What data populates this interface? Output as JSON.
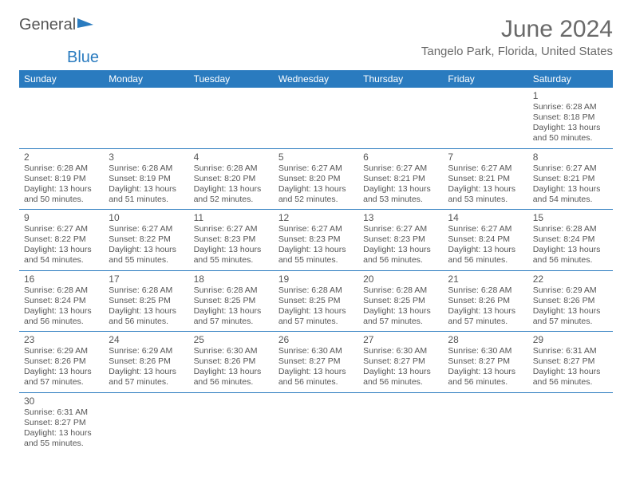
{
  "brand": {
    "part1": "General",
    "part2": "Blue",
    "logo_color": "#2a7bbf"
  },
  "title": "June 2024",
  "location": "Tangelo Park, Florida, United States",
  "colors": {
    "header_bg": "#2a7bbf",
    "header_text": "#ffffff",
    "border": "#2a7bbf",
    "blank_bg": "#f0f0f0",
    "text": "#555555"
  },
  "weekdays": [
    "Sunday",
    "Monday",
    "Tuesday",
    "Wednesday",
    "Thursday",
    "Friday",
    "Saturday"
  ],
  "first_weekday_index": 6,
  "days": [
    {
      "n": 1,
      "sunrise": "6:28 AM",
      "sunset": "8:18 PM",
      "daylight": "13 hours and 50 minutes."
    },
    {
      "n": 2,
      "sunrise": "6:28 AM",
      "sunset": "8:19 PM",
      "daylight": "13 hours and 50 minutes."
    },
    {
      "n": 3,
      "sunrise": "6:28 AM",
      "sunset": "8:19 PM",
      "daylight": "13 hours and 51 minutes."
    },
    {
      "n": 4,
      "sunrise": "6:28 AM",
      "sunset": "8:20 PM",
      "daylight": "13 hours and 52 minutes."
    },
    {
      "n": 5,
      "sunrise": "6:27 AM",
      "sunset": "8:20 PM",
      "daylight": "13 hours and 52 minutes."
    },
    {
      "n": 6,
      "sunrise": "6:27 AM",
      "sunset": "8:21 PM",
      "daylight": "13 hours and 53 minutes."
    },
    {
      "n": 7,
      "sunrise": "6:27 AM",
      "sunset": "8:21 PM",
      "daylight": "13 hours and 53 minutes."
    },
    {
      "n": 8,
      "sunrise": "6:27 AM",
      "sunset": "8:21 PM",
      "daylight": "13 hours and 54 minutes."
    },
    {
      "n": 9,
      "sunrise": "6:27 AM",
      "sunset": "8:22 PM",
      "daylight": "13 hours and 54 minutes."
    },
    {
      "n": 10,
      "sunrise": "6:27 AM",
      "sunset": "8:22 PM",
      "daylight": "13 hours and 55 minutes."
    },
    {
      "n": 11,
      "sunrise": "6:27 AM",
      "sunset": "8:23 PM",
      "daylight": "13 hours and 55 minutes."
    },
    {
      "n": 12,
      "sunrise": "6:27 AM",
      "sunset": "8:23 PM",
      "daylight": "13 hours and 55 minutes."
    },
    {
      "n": 13,
      "sunrise": "6:27 AM",
      "sunset": "8:23 PM",
      "daylight": "13 hours and 56 minutes."
    },
    {
      "n": 14,
      "sunrise": "6:27 AM",
      "sunset": "8:24 PM",
      "daylight": "13 hours and 56 minutes."
    },
    {
      "n": 15,
      "sunrise": "6:28 AM",
      "sunset": "8:24 PM",
      "daylight": "13 hours and 56 minutes."
    },
    {
      "n": 16,
      "sunrise": "6:28 AM",
      "sunset": "8:24 PM",
      "daylight": "13 hours and 56 minutes."
    },
    {
      "n": 17,
      "sunrise": "6:28 AM",
      "sunset": "8:25 PM",
      "daylight": "13 hours and 56 minutes."
    },
    {
      "n": 18,
      "sunrise": "6:28 AM",
      "sunset": "8:25 PM",
      "daylight": "13 hours and 57 minutes."
    },
    {
      "n": 19,
      "sunrise": "6:28 AM",
      "sunset": "8:25 PM",
      "daylight": "13 hours and 57 minutes."
    },
    {
      "n": 20,
      "sunrise": "6:28 AM",
      "sunset": "8:25 PM",
      "daylight": "13 hours and 57 minutes."
    },
    {
      "n": 21,
      "sunrise": "6:28 AM",
      "sunset": "8:26 PM",
      "daylight": "13 hours and 57 minutes."
    },
    {
      "n": 22,
      "sunrise": "6:29 AM",
      "sunset": "8:26 PM",
      "daylight": "13 hours and 57 minutes."
    },
    {
      "n": 23,
      "sunrise": "6:29 AM",
      "sunset": "8:26 PM",
      "daylight": "13 hours and 57 minutes."
    },
    {
      "n": 24,
      "sunrise": "6:29 AM",
      "sunset": "8:26 PM",
      "daylight": "13 hours and 57 minutes."
    },
    {
      "n": 25,
      "sunrise": "6:30 AM",
      "sunset": "8:26 PM",
      "daylight": "13 hours and 56 minutes."
    },
    {
      "n": 26,
      "sunrise": "6:30 AM",
      "sunset": "8:27 PM",
      "daylight": "13 hours and 56 minutes."
    },
    {
      "n": 27,
      "sunrise": "6:30 AM",
      "sunset": "8:27 PM",
      "daylight": "13 hours and 56 minutes."
    },
    {
      "n": 28,
      "sunrise": "6:30 AM",
      "sunset": "8:27 PM",
      "daylight": "13 hours and 56 minutes."
    },
    {
      "n": 29,
      "sunrise": "6:31 AM",
      "sunset": "8:27 PM",
      "daylight": "13 hours and 56 minutes."
    },
    {
      "n": 30,
      "sunrise": "6:31 AM",
      "sunset": "8:27 PM",
      "daylight": "13 hours and 55 minutes."
    }
  ],
  "labels": {
    "sunrise": "Sunrise:",
    "sunset": "Sunset:",
    "daylight": "Daylight:"
  }
}
